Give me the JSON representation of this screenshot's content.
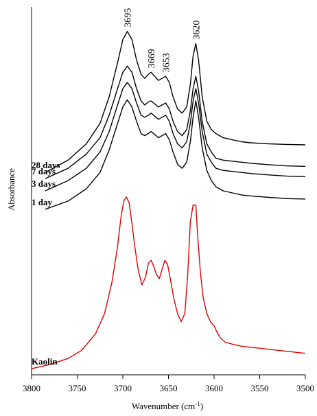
{
  "chart_data": {
    "type": "line",
    "xlabel": "Wavenumber (cm",
    "xlabel_sup": "-1",
    "xlabel_close": ")",
    "ylabel": "Absorbance",
    "xlim": [
      3800,
      3500
    ],
    "x_reversed": true,
    "yaxis_ticks": false,
    "grid": false,
    "x_ticks": [
      3800,
      3750,
      3700,
      3650,
      3600,
      3550,
      3500
    ],
    "x_tick_labels": [
      "3800",
      "3750",
      "3700",
      "3650",
      "3600",
      "3550",
      "3500"
    ],
    "y_units": "arbitrary, vertically offset",
    "peak_annotations": [
      {
        "x": 3695,
        "label": "3695"
      },
      {
        "x": 3669,
        "label": "3669"
      },
      {
        "x": 3653,
        "label": "3653"
      },
      {
        "x": 3620,
        "label": "3620"
      }
    ],
    "series": [
      {
        "name": "28 days",
        "color": "#000000",
        "x": [
          3785,
          3760,
          3740,
          3725,
          3715,
          3705,
          3700,
          3695,
          3690,
          3685,
          3680,
          3676,
          3672,
          3669,
          3665,
          3661,
          3657,
          3653,
          3649,
          3645,
          3640,
          3635,
          3630,
          3626,
          3623,
          3620,
          3617,
          3613,
          3608,
          3603,
          3598,
          3590,
          3580,
          3570,
          3560,
          3540,
          3520,
          3500
        ],
        "y": [
          0.19,
          0.25,
          0.33,
          0.43,
          0.56,
          0.74,
          0.84,
          0.88,
          0.84,
          0.74,
          0.67,
          0.65,
          0.67,
          0.68,
          0.66,
          0.64,
          0.65,
          0.66,
          0.63,
          0.56,
          0.5,
          0.48,
          0.51,
          0.62,
          0.76,
          0.82,
          0.74,
          0.56,
          0.44,
          0.4,
          0.38,
          0.36,
          0.35,
          0.34,
          0.335,
          0.33,
          0.327,
          0.325
        ]
      },
      {
        "name": "7 days",
        "color": "#000000",
        "x": [
          3785,
          3760,
          3740,
          3725,
          3715,
          3705,
          3700,
          3695,
          3690,
          3685,
          3680,
          3676,
          3672,
          3669,
          3665,
          3661,
          3657,
          3653,
          3649,
          3645,
          3640,
          3635,
          3630,
          3626,
          3623,
          3620,
          3617,
          3613,
          3608,
          3603,
          3598,
          3590,
          3580,
          3570,
          3560,
          3540,
          3520,
          3500
        ],
        "y": [
          0.16,
          0.21,
          0.28,
          0.36,
          0.47,
          0.61,
          0.68,
          0.71,
          0.68,
          0.6,
          0.54,
          0.52,
          0.535,
          0.54,
          0.525,
          0.51,
          0.52,
          0.53,
          0.5,
          0.44,
          0.39,
          0.37,
          0.4,
          0.49,
          0.6,
          0.66,
          0.59,
          0.44,
          0.33,
          0.29,
          0.26,
          0.25,
          0.245,
          0.24,
          0.235,
          0.228,
          0.222,
          0.22
        ]
      },
      {
        "name": "3 days",
        "color": "#000000",
        "x": [
          3785,
          3760,
          3740,
          3725,
          3715,
          3705,
          3700,
          3695,
          3690,
          3685,
          3680,
          3676,
          3672,
          3669,
          3665,
          3661,
          3657,
          3653,
          3649,
          3645,
          3640,
          3635,
          3630,
          3626,
          3623,
          3620,
          3617,
          3613,
          3608,
          3603,
          3598,
          3590,
          3580,
          3570,
          3560,
          3540,
          3520,
          3500
        ],
        "y": [
          0.1,
          0.15,
          0.21,
          0.29,
          0.39,
          0.53,
          0.6,
          0.63,
          0.6,
          0.53,
          0.47,
          0.46,
          0.47,
          0.48,
          0.465,
          0.45,
          0.46,
          0.47,
          0.44,
          0.38,
          0.33,
          0.31,
          0.34,
          0.43,
          0.54,
          0.6,
          0.53,
          0.39,
          0.28,
          0.24,
          0.21,
          0.2,
          0.195,
          0.19,
          0.185,
          0.178,
          0.172,
          0.17
        ]
      },
      {
        "name": "1 day",
        "color": "#000000",
        "x": [
          3785,
          3760,
          3740,
          3725,
          3715,
          3705,
          3700,
          3695,
          3690,
          3685,
          3680,
          3676,
          3672,
          3669,
          3665,
          3661,
          3657,
          3653,
          3649,
          3645,
          3640,
          3635,
          3630,
          3626,
          3623,
          3620,
          3617,
          3613,
          3608,
          3603,
          3598,
          3590,
          3580,
          3570,
          3560,
          3540,
          3520,
          3500
        ],
        "y": [
          0.01,
          0.05,
          0.11,
          0.19,
          0.3,
          0.44,
          0.51,
          0.545,
          0.51,
          0.44,
          0.38,
          0.37,
          0.38,
          0.39,
          0.375,
          0.36,
          0.37,
          0.38,
          0.35,
          0.29,
          0.23,
          0.21,
          0.24,
          0.34,
          0.46,
          0.54,
          0.46,
          0.31,
          0.2,
          0.15,
          0.12,
          0.1,
          0.09,
          0.08,
          0.075,
          0.068,
          0.062,
          0.06
        ]
      },
      {
        "name": "Kaolin",
        "color": "#e00000",
        "x": [
          3800,
          3780,
          3760,
          3745,
          3730,
          3720,
          3712,
          3706,
          3702,
          3699,
          3696,
          3693,
          3690,
          3687,
          3683,
          3679,
          3675,
          3672,
          3669,
          3666,
          3663,
          3660,
          3657,
          3654,
          3651,
          3648,
          3644,
          3640,
          3636,
          3632,
          3629,
          3626,
          3623,
          3620,
          3618,
          3615,
          3612,
          3608,
          3604,
          3600,
          3597,
          3593,
          3588,
          3580,
          3570,
          3560,
          3540,
          3520,
          3500
        ],
        "y": [
          -0.77,
          -0.75,
          -0.72,
          -0.68,
          -0.6,
          -0.5,
          -0.35,
          -0.18,
          -0.03,
          0.05,
          0.07,
          0.04,
          -0.06,
          -0.17,
          -0.29,
          -0.36,
          -0.32,
          -0.255,
          -0.24,
          -0.27,
          -0.31,
          -0.33,
          -0.285,
          -0.24,
          -0.26,
          -0.33,
          -0.43,
          -0.5,
          -0.54,
          -0.5,
          -0.32,
          -0.05,
          0.03,
          0.03,
          -0.12,
          -0.3,
          -0.42,
          -0.5,
          -0.54,
          -0.56,
          -0.59,
          -0.62,
          -0.64,
          -0.65,
          -0.66,
          -0.665,
          -0.675,
          -0.685,
          -0.695
        ]
      }
    ]
  }
}
